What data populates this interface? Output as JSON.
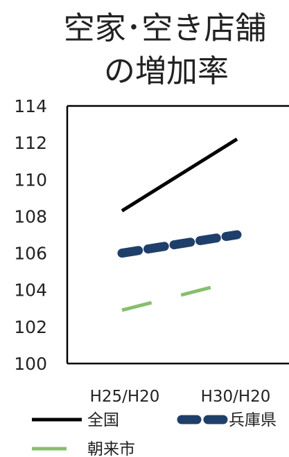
{
  "chart_data": {
    "type": "line",
    "title_lines": [
      "空家･空き店舗",
      "の増加率"
    ],
    "categories": [
      "H25/H20",
      "H30/H20"
    ],
    "ylim": [
      100,
      114
    ],
    "yticks": [
      100,
      102,
      104,
      106,
      108,
      110,
      112,
      114
    ],
    "grid": false,
    "legend_position": "bottom",
    "series": [
      {
        "name": "全国",
        "values": [
          108.3,
          112.2
        ],
        "color": "#000000",
        "dash": "solid"
      },
      {
        "name": "兵庫県",
        "values": [
          106.0,
          107.0
        ],
        "color": "#1f3f6b",
        "dash": "long-dash"
      },
      {
        "name": "朝来市",
        "values": [
          102.9,
          104.5
        ],
        "color": "#86bf6c",
        "dash": "dash"
      }
    ]
  }
}
